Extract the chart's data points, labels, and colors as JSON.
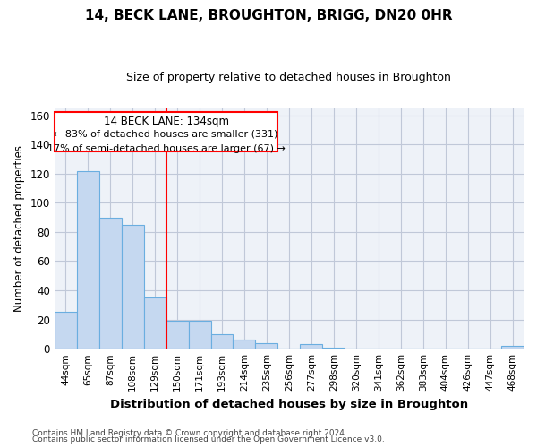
{
  "title": "14, BECK LANE, BROUGHTON, BRIGG, DN20 0HR",
  "subtitle": "Size of property relative to detached houses in Broughton",
  "xlabel": "Distribution of detached houses by size in Broughton",
  "ylabel": "Number of detached properties",
  "categories": [
    "44sqm",
    "65sqm",
    "87sqm",
    "108sqm",
    "129sqm",
    "150sqm",
    "171sqm",
    "193sqm",
    "214sqm",
    "235sqm",
    "256sqm",
    "277sqm",
    "298sqm",
    "320sqm",
    "341sqm",
    "362sqm",
    "383sqm",
    "404sqm",
    "426sqm",
    "447sqm",
    "468sqm"
  ],
  "values": [
    25,
    122,
    90,
    85,
    35,
    19,
    19,
    10,
    6,
    4,
    0,
    3,
    1,
    0,
    0,
    0,
    0,
    0,
    0,
    0,
    2
  ],
  "bar_color": "#c5d8f0",
  "bar_edge_color": "#6aaee0",
  "property_line_x": 4.5,
  "property_label": "14 BECK LANE: 134sqm",
  "annotation_line1": "← 83% of detached houses are smaller (331)",
  "annotation_line2": "17% of semi-detached houses are larger (67) →",
  "annotation_box_color": "red",
  "ylim": [
    0,
    165
  ],
  "yticks": [
    0,
    20,
    40,
    60,
    80,
    100,
    120,
    140,
    160
  ],
  "footnote1": "Contains HM Land Registry data © Crown copyright and database right 2024.",
  "footnote2": "Contains public sector information licensed under the Open Government Licence v3.0.",
  "bg_color": "#ffffff",
  "plot_bg_color": "#eef2f8",
  "grid_color": "#c0c8d8",
  "title_fontsize": 11,
  "subtitle_fontsize": 9
}
